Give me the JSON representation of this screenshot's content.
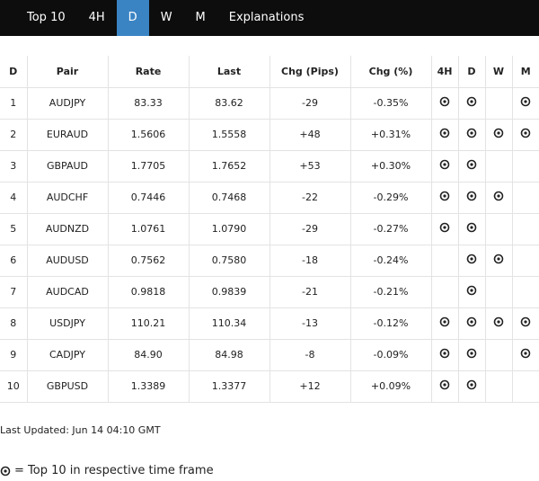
{
  "nav": {
    "items": [
      "Top 10",
      "4H",
      "D",
      "W",
      "M",
      "Explanations"
    ],
    "active": 2
  },
  "table": {
    "header": [
      "D",
      "Pair",
      "Rate",
      "Last",
      "Chg (Pips)",
      "Chg (%)",
      "4H",
      "D",
      "W",
      "M"
    ],
    "rows": [
      [
        "1",
        "AUDJPY",
        "83.33",
        "83.62",
        "-29",
        "-0.35%"
      ],
      [
        "2",
        "EURAUD",
        "1.5606",
        "1.5558",
        "+48",
        "+0.31%"
      ],
      [
        "3",
        "GBPAUD",
        "1.7705",
        "1.7652",
        "+53",
        "+0.30%"
      ],
      [
        "4",
        "AUDCHF",
        "0.7446",
        "0.7468",
        "-22",
        "-0.29%"
      ],
      [
        "5",
        "AUDNZD",
        "1.0761",
        "1.0790",
        "-29",
        "-0.27%"
      ],
      [
        "6",
        "AUDUSD",
        "0.7562",
        "0.7580",
        "-18",
        "-0.24%"
      ],
      [
        "7",
        "AUDCAD",
        "0.9818",
        "0.9839",
        "-21",
        "-0.21%"
      ],
      [
        "8",
        "USDJPY",
        "110.21",
        "110.34",
        "-13",
        "-0.12%"
      ],
      [
        "9",
        "CADJPY",
        "84.90",
        "84.98",
        "-8",
        "-0.09%"
      ],
      [
        "10",
        "GBPUSD",
        "1.3389",
        "1.3377",
        "+12",
        "+0.09%"
      ]
    ],
    "top10": [
      [
        true,
        true,
        false,
        true
      ],
      [
        true,
        true,
        true,
        true
      ],
      [
        true,
        true,
        false,
        false
      ],
      [
        true,
        true,
        true,
        false
      ],
      [
        true,
        true,
        false,
        false
      ],
      [
        false,
        true,
        true,
        false
      ],
      [
        false,
        true,
        false,
        false
      ],
      [
        true,
        true,
        true,
        true
      ],
      [
        true,
        true,
        false,
        true
      ],
      [
        true,
        true,
        false,
        false
      ]
    ]
  },
  "footer": {
    "updated": "Last Updated: Jun 14 04:10 GMT",
    "legend": "= Top 10 in respective time frame"
  }
}
